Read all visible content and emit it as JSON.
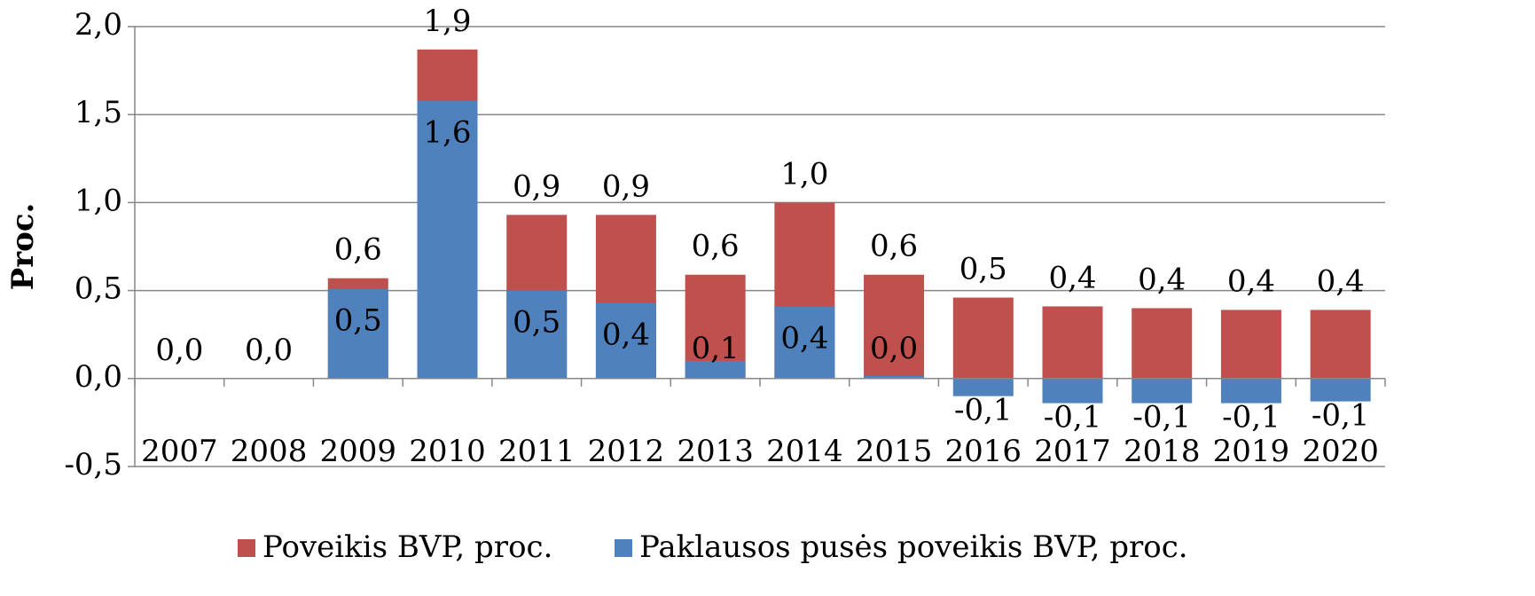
{
  "chart_data": {
    "type": "bar",
    "y_label": "Proc.",
    "categories": [
      "2007",
      "2008",
      "2009",
      "2010",
      "2011",
      "2012",
      "2013",
      "2014",
      "2015",
      "2016",
      "2017",
      "2018",
      "2019",
      "2020"
    ],
    "series": [
      {
        "name": "Poveikis BVP, proc.",
        "color": "#c0504d",
        "values": [
          0,
          0,
          0.57,
          1.87,
          0.93,
          0.93,
          0.59,
          1.0,
          0.59,
          0.46,
          0.41,
          0.4,
          0.39,
          0.39
        ],
        "value_labels": [
          "0,0",
          "0,0",
          "0,6",
          "1,9",
          "0,9",
          "0,9",
          "0,6",
          "1,0",
          "0,6",
          "0,5",
          "0,4",
          "0,4",
          "0,4",
          "0,4"
        ]
      },
      {
        "name": "Paklausos pusės poveikis BVP, proc.",
        "color": "#4f81bd",
        "values": [
          0,
          0,
          0.51,
          1.58,
          0.5,
          0.43,
          0.1,
          0.41,
          0.015,
          -0.1,
          -0.14,
          -0.14,
          -0.14,
          -0.13
        ],
        "value_labels": [
          null,
          null,
          "0,5",
          "1,6",
          "0,5",
          "0,4",
          "0,1",
          "0,4",
          "0,0",
          "-0,1",
          "-0,1",
          "-0,1",
          "-0,1",
          "-0,1"
        ]
      }
    ],
    "ylim": [
      -0.5,
      2.0
    ],
    "yticks": [
      {
        "value": -0.5,
        "label": "-0,5"
      },
      {
        "value": 0,
        "label": "0,0"
      },
      {
        "value": 0.5,
        "label": "0,5"
      },
      {
        "value": 1.0,
        "label": "1,0"
      },
      {
        "value": 1.5,
        "label": "1,5"
      },
      {
        "value": 2.0,
        "label": "2,0"
      }
    ],
    "grid": true,
    "legend": "bottom",
    "overlap": true
  }
}
